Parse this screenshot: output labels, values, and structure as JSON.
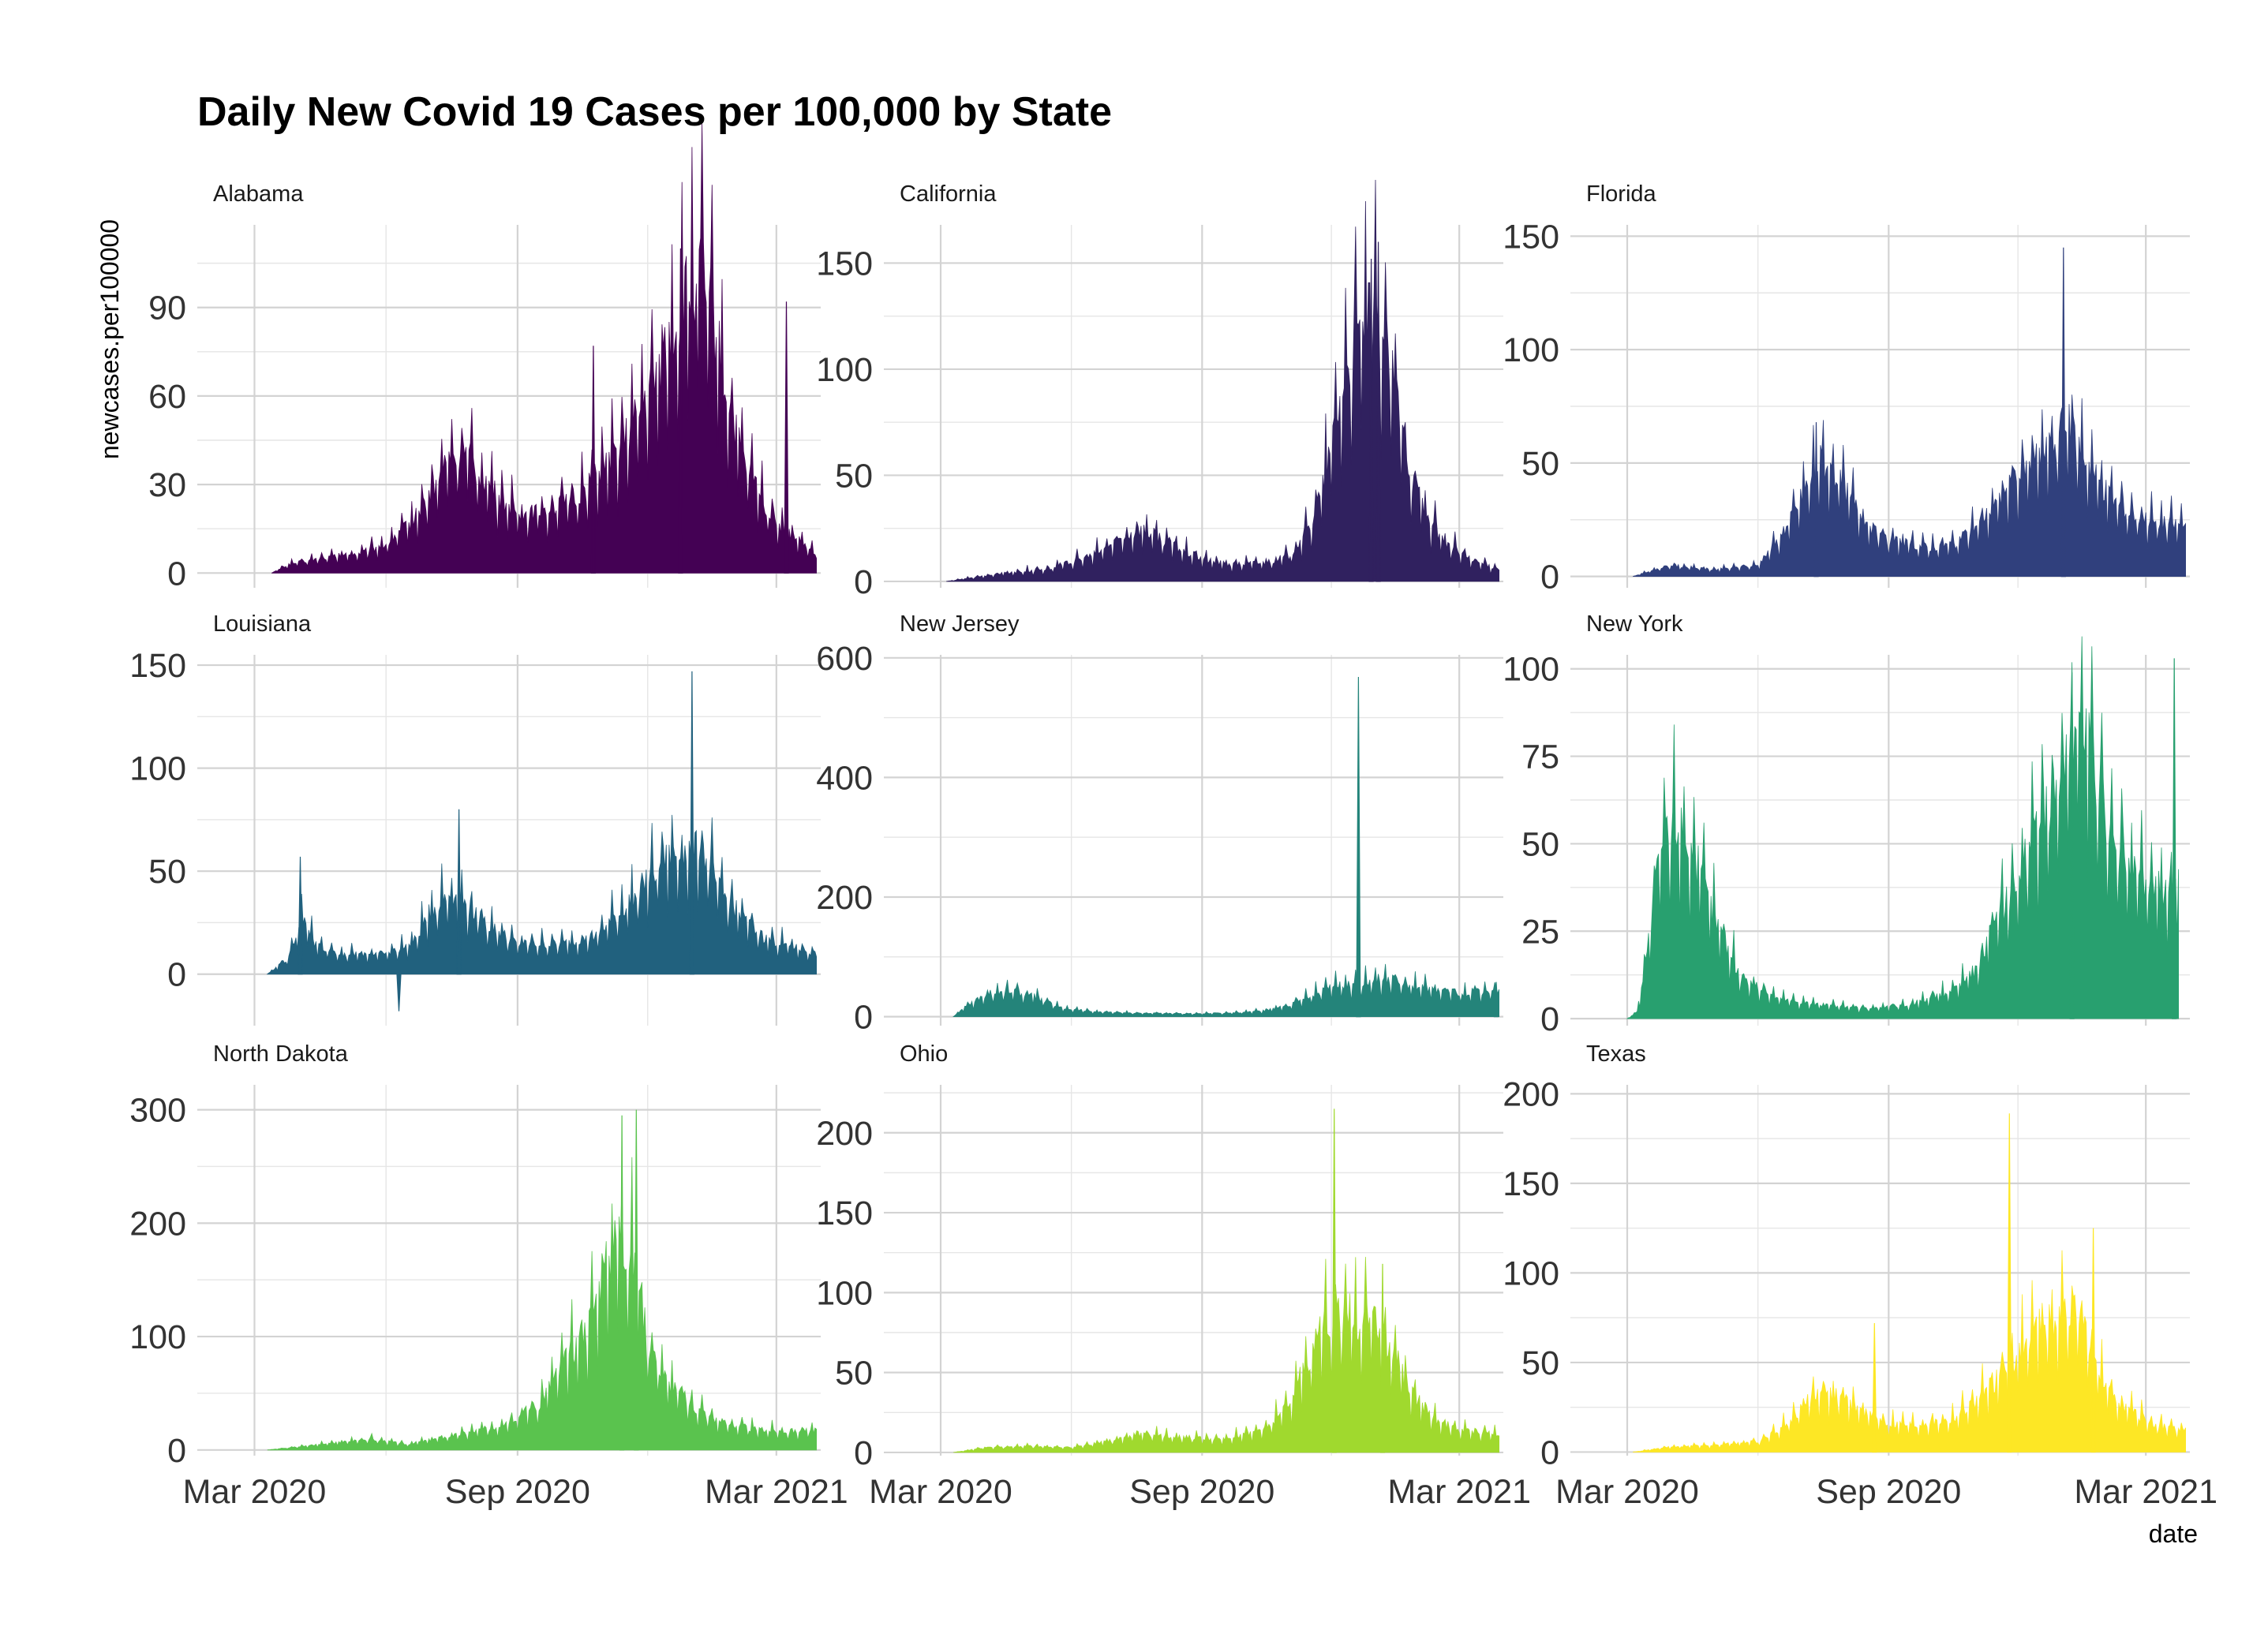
{
  "chart_data": {
    "type": "area",
    "title": "Daily New Covid 19 Cases per 100,000 by State",
    "xlabel": "date",
    "ylabel": "newcases.per100000",
    "x_ticks": [
      "Mar 2020",
      "Sep 2020",
      "Mar 2021"
    ],
    "x_range": [
      "2020-01-21",
      "2021-04-01"
    ],
    "grid": true,
    "legend": "none",
    "panels": [
      {
        "name": "Alabama",
        "color": "#440154",
        "ylim": [
          -5,
          118
        ],
        "yticks": [
          0,
          30,
          60,
          90
        ],
        "points": [
          [
            "2020-03-13",
            0
          ],
          [
            "2020-03-25",
            3
          ],
          [
            "2020-04-15",
            5
          ],
          [
            "2020-05-15",
            7
          ],
          [
            "2020-06-01",
            10
          ],
          [
            "2020-06-20",
            18
          ],
          [
            "2020-07-05",
            30
          ],
          [
            "2020-07-15",
            40
          ],
          [
            "2020-07-25",
            42
          ],
          [
            "2020-08-05",
            35
          ],
          [
            "2020-08-20",
            25
          ],
          [
            "2020-09-05",
            20
          ],
          [
            "2020-09-20",
            22
          ],
          [
            "2020-10-05",
            24
          ],
          [
            "2020-10-20",
            30
          ],
          [
            "2020-11-05",
            38
          ],
          [
            "2020-11-20",
            50
          ],
          [
            "2020-12-05",
            65
          ],
          [
            "2020-12-20",
            85
          ],
          [
            "2020-12-30",
            98
          ],
          [
            "2021-01-08",
            104
          ],
          [
            "2021-01-15",
            90
          ],
          [
            "2021-01-25",
            62
          ],
          [
            "2021-02-05",
            40
          ],
          [
            "2021-02-20",
            25
          ],
          [
            "2021-03-05",
            15
          ],
          [
            "2021-03-20",
            10
          ],
          [
            "2021-03-29",
            6
          ]
        ],
        "spikes": [
          [
            "2020-10-24",
            77
          ],
          [
            "2020-12-24",
            110
          ],
          [
            "2021-03-08",
            92
          ]
        ]
      },
      {
        "name": "California",
        "color": "#30215F",
        "ylim": [
          -3,
          168
        ],
        "yticks": [
          0,
          50,
          100,
          150
        ],
        "points": [
          [
            "2020-03-05",
            0
          ],
          [
            "2020-03-25",
            2
          ],
          [
            "2020-04-15",
            4
          ],
          [
            "2020-05-15",
            6
          ],
          [
            "2020-06-15",
            12
          ],
          [
            "2020-07-05",
            20
          ],
          [
            "2020-07-20",
            25
          ],
          [
            "2020-08-05",
            20
          ],
          [
            "2020-08-20",
            14
          ],
          [
            "2020-09-05",
            10
          ],
          [
            "2020-09-20",
            8
          ],
          [
            "2020-10-15",
            9
          ],
          [
            "2020-11-01",
            12
          ],
          [
            "2020-11-15",
            25
          ],
          [
            "2020-11-25",
            45
          ],
          [
            "2020-12-05",
            80
          ],
          [
            "2020-12-15",
            110
          ],
          [
            "2020-12-25",
            125
          ],
          [
            "2021-01-05",
            122
          ],
          [
            "2021-01-15",
            90
          ],
          [
            "2021-01-25",
            55
          ],
          [
            "2021-02-05",
            32
          ],
          [
            "2021-02-20",
            18
          ],
          [
            "2021-03-10",
            10
          ],
          [
            "2021-03-29",
            6
          ]
        ],
        "spikes": [
          [
            "2020-12-29",
            152
          ],
          [
            "2021-01-03",
            160
          ]
        ]
      },
      {
        "name": "Florida",
        "color": "#30407D",
        "ylim": [
          -5,
          155
        ],
        "yticks": [
          0,
          50,
          100,
          150
        ],
        "points": [
          [
            "2020-03-05",
            0
          ],
          [
            "2020-03-20",
            3
          ],
          [
            "2020-04-01",
            5
          ],
          [
            "2020-05-01",
            3
          ],
          [
            "2020-06-01",
            5
          ],
          [
            "2020-06-20",
            20
          ],
          [
            "2020-07-05",
            40
          ],
          [
            "2020-07-15",
            52
          ],
          [
            "2020-07-25",
            46
          ],
          [
            "2020-08-10",
            30
          ],
          [
            "2020-08-25",
            18
          ],
          [
            "2020-09-10",
            15
          ],
          [
            "2020-09-30",
            13
          ],
          [
            "2020-10-20",
            15
          ],
          [
            "2020-11-10",
            28
          ],
          [
            "2020-11-25",
            40
          ],
          [
            "2020-12-10",
            50
          ],
          [
            "2020-12-25",
            58
          ],
          [
            "2021-01-05",
            68
          ],
          [
            "2021-01-15",
            56
          ],
          [
            "2021-01-25",
            45
          ],
          [
            "2021-02-05",
            35
          ],
          [
            "2021-02-20",
            28
          ],
          [
            "2021-03-10",
            24
          ],
          [
            "2021-03-29",
            23
          ]
        ],
        "spikes": [
          [
            "2021-01-02",
            145
          ],
          [
            "2020-07-12",
            68
          ]
        ]
      },
      {
        "name": "Louisiana",
        "color": "#21617E",
        "ylim": [
          -25,
          155
        ],
        "yticks": [
          0,
          50,
          100,
          150
        ],
        "points": [
          [
            "2020-03-10",
            0
          ],
          [
            "2020-03-25",
            8
          ],
          [
            "2020-04-05",
            30
          ],
          [
            "2020-04-12",
            15
          ],
          [
            "2020-05-01",
            10
          ],
          [
            "2020-06-01",
            10
          ],
          [
            "2020-06-20",
            15
          ],
          [
            "2020-07-01",
            30
          ],
          [
            "2020-07-15",
            40
          ],
          [
            "2020-07-25",
            35
          ],
          [
            "2020-08-10",
            25
          ],
          [
            "2020-09-01",
            15
          ],
          [
            "2020-10-01",
            15
          ],
          [
            "2020-10-25",
            18
          ],
          [
            "2020-11-10",
            30
          ],
          [
            "2020-11-25",
            40
          ],
          [
            "2020-12-10",
            55
          ],
          [
            "2020-12-25",
            60
          ],
          [
            "2021-01-08",
            62
          ],
          [
            "2021-01-20",
            42
          ],
          [
            "2021-02-05",
            28
          ],
          [
            "2021-02-20",
            18
          ],
          [
            "2021-03-10",
            14
          ],
          [
            "2021-03-29",
            10
          ]
        ],
        "spikes": [
          [
            "2020-04-02",
            57
          ],
          [
            "2020-06-10",
            -18
          ],
          [
            "2020-07-22",
            80
          ],
          [
            "2021-01-01",
            147
          ]
        ]
      },
      {
        "name": "New Jersey",
        "color": "#24847A",
        "ylim": [
          -15,
          605
        ],
        "yticks": [
          0,
          200,
          400,
          600
        ],
        "points": [
          [
            "2020-03-10",
            0
          ],
          [
            "2020-03-20",
            20
          ],
          [
            "2020-04-05",
            40
          ],
          [
            "2020-04-20",
            45
          ],
          [
            "2020-05-05",
            35
          ],
          [
            "2020-05-25",
            15
          ],
          [
            "2020-06-20",
            8
          ],
          [
            "2020-07-20",
            6
          ],
          [
            "2020-08-20",
            5
          ],
          [
            "2020-09-20",
            6
          ],
          [
            "2020-10-15",
            10
          ],
          [
            "2020-11-01",
            20
          ],
          [
            "2020-11-20",
            40
          ],
          [
            "2020-12-10",
            55
          ],
          [
            "2020-12-25",
            60
          ],
          [
            "2021-01-10",
            65
          ],
          [
            "2021-01-25",
            55
          ],
          [
            "2021-02-10",
            45
          ],
          [
            "2021-03-01",
            40
          ],
          [
            "2021-03-29",
            45
          ]
        ],
        "spikes": [
          [
            "2020-12-20",
            568
          ],
          [
            "2021-03-27",
            58
          ]
        ]
      },
      {
        "name": "New York",
        "color": "#28A06F",
        "ylim": [
          -2,
          104
        ],
        "yticks": [
          0,
          25,
          50,
          75,
          100
        ],
        "points": [
          [
            "2020-03-01",
            0
          ],
          [
            "2020-03-08",
            2
          ],
          [
            "2020-03-15",
            20
          ],
          [
            "2020-03-25",
            50
          ],
          [
            "2020-04-05",
            58
          ],
          [
            "2020-04-15",
            50
          ],
          [
            "2020-05-01",
            30
          ],
          [
            "2020-05-20",
            12
          ],
          [
            "2020-06-15",
            6
          ],
          [
            "2020-07-15",
            4
          ],
          [
            "2020-08-15",
            3
          ],
          [
            "2020-09-15",
            4
          ],
          [
            "2020-10-15",
            8
          ],
          [
            "2020-11-01",
            14
          ],
          [
            "2020-11-15",
            28
          ],
          [
            "2020-12-01",
            42
          ],
          [
            "2020-12-15",
            55
          ],
          [
            "2021-01-01",
            75
          ],
          [
            "2021-01-12",
            88
          ],
          [
            "2021-01-25",
            70
          ],
          [
            "2021-02-10",
            50
          ],
          [
            "2021-03-01",
            40
          ],
          [
            "2021-03-20",
            36
          ],
          [
            "2021-03-24",
            44
          ]
        ],
        "spikes": [
          [
            "2021-01-08",
            99
          ],
          [
            "2021-03-21",
            103
          ]
        ]
      },
      {
        "name": "North Dakota",
        "color": "#5AC34E",
        "ylim": [
          -5,
          322
        ],
        "yticks": [
          0,
          100,
          200,
          300
        ],
        "points": [
          [
            "2020-03-10",
            0
          ],
          [
            "2020-04-01",
            3
          ],
          [
            "2020-05-01",
            7
          ],
          [
            "2020-05-20",
            10
          ],
          [
            "2020-06-15",
            5
          ],
          [
            "2020-07-15",
            12
          ],
          [
            "2020-08-15",
            20
          ],
          [
            "2020-09-15",
            40
          ],
          [
            "2020-10-05",
            80
          ],
          [
            "2020-10-20",
            110
          ],
          [
            "2020-11-01",
            160
          ],
          [
            "2020-11-12",
            200
          ],
          [
            "2020-11-20",
            170
          ],
          [
            "2020-12-01",
            100
          ],
          [
            "2020-12-15",
            60
          ],
          [
            "2021-01-01",
            40
          ],
          [
            "2021-01-20",
            25
          ],
          [
            "2021-02-15",
            18
          ],
          [
            "2021-03-15",
            16
          ],
          [
            "2021-03-29",
            18
          ]
        ],
        "spikes": [
          [
            "2020-11-13",
            295
          ],
          [
            "2020-11-23",
            300
          ]
        ]
      },
      {
        "name": "Ohio",
        "color": "#A0D92E",
        "ylim": [
          -2,
          230
        ],
        "yticks": [
          0,
          50,
          100,
          150,
          200
        ],
        "points": [
          [
            "2020-03-10",
            0
          ],
          [
            "2020-04-01",
            3
          ],
          [
            "2020-05-01",
            4
          ],
          [
            "2020-06-01",
            3
          ],
          [
            "2020-07-01",
            8
          ],
          [
            "2020-07-20",
            12
          ],
          [
            "2020-08-15",
            10
          ],
          [
            "2020-09-15",
            8
          ],
          [
            "2020-10-15",
            15
          ],
          [
            "2020-11-01",
            30
          ],
          [
            "2020-11-15",
            60
          ],
          [
            "2020-11-25",
            80
          ],
          [
            "2020-12-05",
            92
          ],
          [
            "2020-12-20",
            85
          ],
          [
            "2021-01-05",
            80
          ],
          [
            "2021-01-15",
            60
          ],
          [
            "2021-01-25",
            40
          ],
          [
            "2021-02-10",
            22
          ],
          [
            "2021-03-01",
            14
          ],
          [
            "2021-03-29",
            12
          ]
        ],
        "spikes": [
          [
            "2020-12-03",
            215
          ],
          [
            "2021-01-06",
            118
          ]
        ]
      },
      {
        "name": "Texas",
        "color": "#FDE725",
        "ylim": [
          -2,
          205
        ],
        "yticks": [
          0,
          50,
          100,
          150,
          200
        ],
        "points": [
          [
            "2020-03-05",
            0
          ],
          [
            "2020-04-01",
            3
          ],
          [
            "2020-05-01",
            4
          ],
          [
            "2020-06-01",
            6
          ],
          [
            "2020-06-20",
            15
          ],
          [
            "2020-07-05",
            28
          ],
          [
            "2020-07-15",
            35
          ],
          [
            "2020-07-30",
            30
          ],
          [
            "2020-08-15",
            22
          ],
          [
            "2020-09-01",
            16
          ],
          [
            "2020-09-20",
            15
          ],
          [
            "2020-10-15",
            18
          ],
          [
            "2020-11-01",
            28
          ],
          [
            "2020-11-15",
            40
          ],
          [
            "2020-12-01",
            55
          ],
          [
            "2020-12-15",
            70
          ],
          [
            "2020-12-30",
            75
          ],
          [
            "2021-01-10",
            85
          ],
          [
            "2021-01-20",
            60
          ],
          [
            "2021-02-01",
            35
          ],
          [
            "2021-02-20",
            22
          ],
          [
            "2021-03-10",
            15
          ],
          [
            "2021-03-29",
            12
          ]
        ],
        "spikes": [
          [
            "2020-08-22",
            72
          ],
          [
            "2020-11-25",
            189
          ],
          [
            "2021-01-23",
            125
          ]
        ]
      }
    ]
  }
}
